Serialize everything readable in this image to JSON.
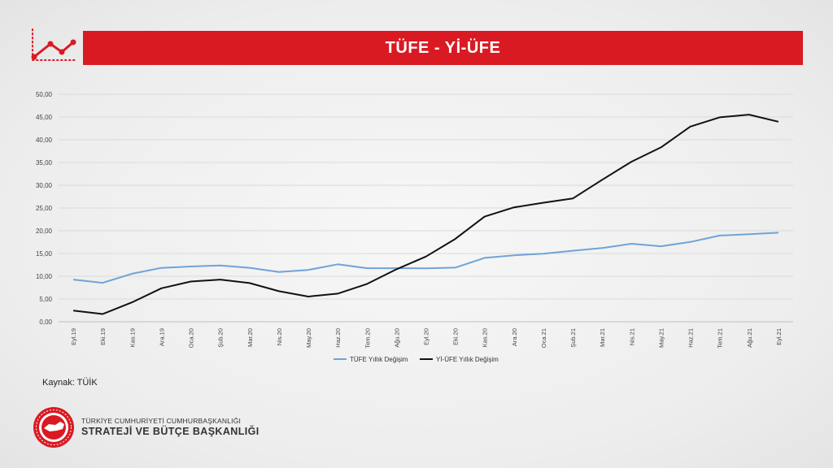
{
  "header": {
    "title": "TÜFE - Yİ-ÜFE"
  },
  "source_text": "Kaynak: TÜİK",
  "organization": {
    "line1": "TÜRKİYE CUMHURİYETİ CUMHURBAŞKANLIĞI",
    "line2": "STRATEJİ VE BÜTÇE BAŞKANLIĞI"
  },
  "icons": {
    "header_icon": "trend-line-icon",
    "logo": "state-seal-icon"
  },
  "colors": {
    "accent": "#d91a23",
    "series_tufe": "#6fa3d8",
    "series_yiufe": "#111111"
  },
  "chart_data": {
    "type": "line",
    "categories": [
      "Eyl.19",
      "Eki.19",
      "Kas.19",
      "Ara.19",
      "Oca.20",
      "Şub.20",
      "Mar.20",
      "Nis.20",
      "May.20",
      "Haz.20",
      "Tem.20",
      "Ağu.20",
      "Eyl.20",
      "Eki.20",
      "Kas.20",
      "Ara.20",
      "Oca.21",
      "Şub.21",
      "Mar.21",
      "Nis.21",
      "May.21",
      "Haz.21",
      "Tem.21",
      "Ağu.21",
      "Eyl.21"
    ],
    "series": [
      {
        "name": "TÜFE Yıllık Değişim",
        "values": [
          9.26,
          8.55,
          10.56,
          11.84,
          12.15,
          12.37,
          11.86,
          10.94,
          11.39,
          12.62,
          11.76,
          11.77,
          11.75,
          11.89,
          14.03,
          14.6,
          14.97,
          15.61,
          16.19,
          17.14,
          16.59,
          17.53,
          18.95,
          19.25,
          19.58
        ]
      },
      {
        "name": "Yİ-ÜFE Yıllık Değişim",
        "values": [
          2.45,
          1.7,
          4.26,
          7.36,
          8.84,
          9.26,
          8.5,
          6.71,
          5.53,
          6.17,
          8.33,
          11.53,
          14.33,
          18.2,
          23.11,
          25.15,
          26.16,
          27.09,
          31.2,
          35.17,
          38.33,
          42.89,
          44.92,
          45.52,
          43.96
        ]
      }
    ],
    "y_ticks": [
      "0,00",
      "5,00",
      "10,00",
      "15,00",
      "20,00",
      "25,00",
      "30,00",
      "35,00",
      "40,00",
      "45,00",
      "50,00"
    ],
    "ylim": [
      0,
      50
    ],
    "grid": true,
    "legend_position": "bottom"
  }
}
